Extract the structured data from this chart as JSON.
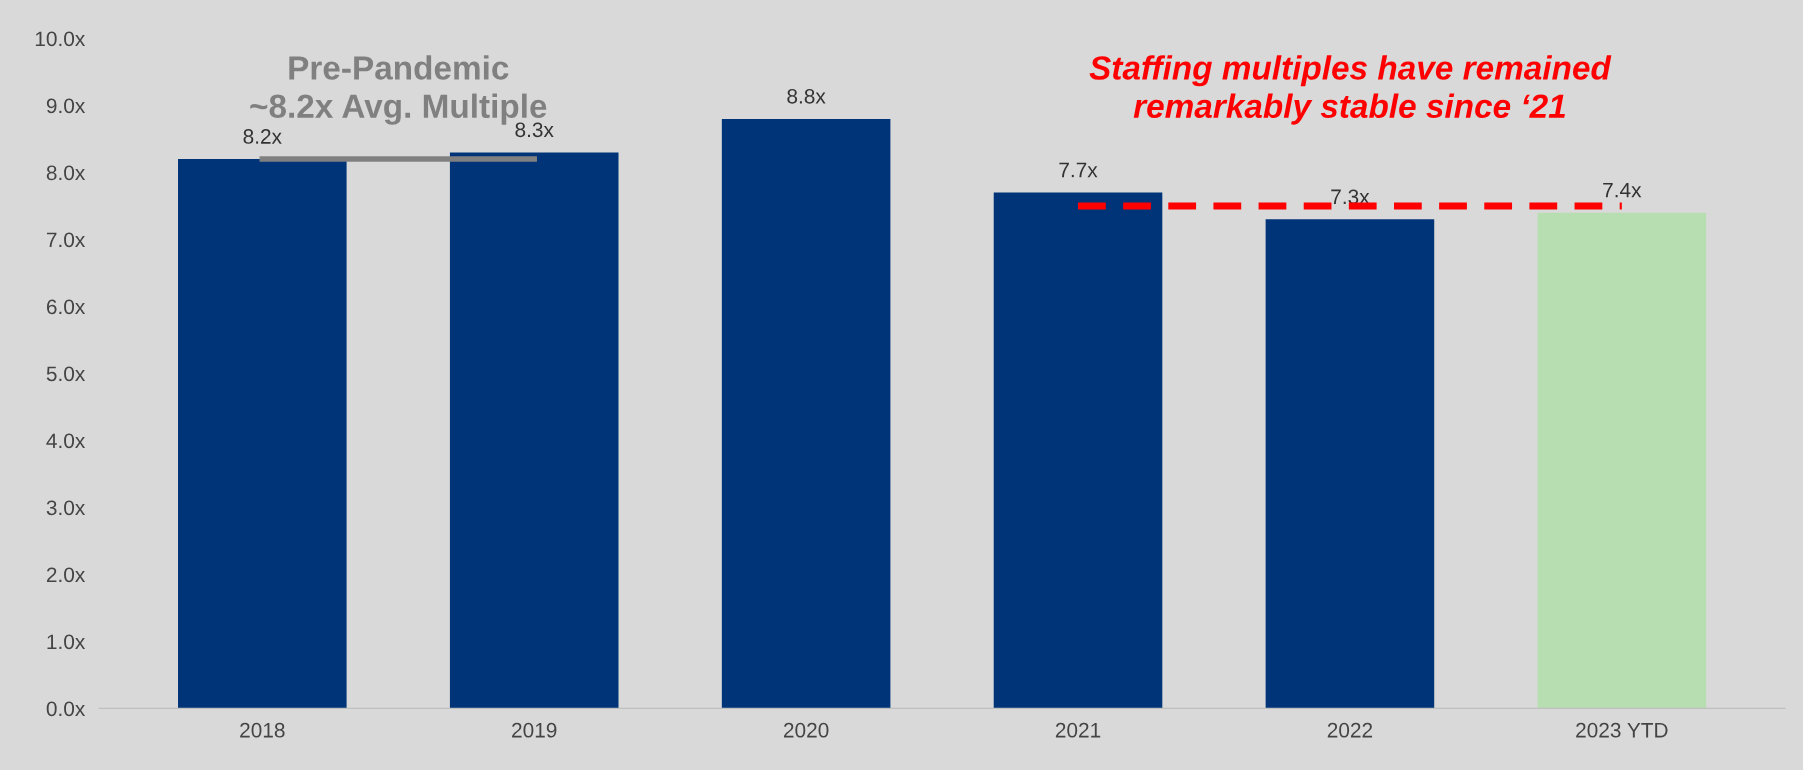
{
  "chart_data": {
    "type": "bar",
    "categories": [
      "2018",
      "2019",
      "2020",
      "2021",
      "2022",
      "2023 YTD"
    ],
    "series": [
      {
        "colors": [
          "#003478",
          "#003478",
          "#003478",
          "#003478",
          "#003478",
          "#b6deb1"
        ],
        "values": [
          8.2,
          8.3,
          8.8,
          7.7,
          7.3,
          7.4
        ],
        "value_labels": [
          "8.2x",
          "8.3x",
          "8.8x",
          "7.7x",
          "7.3x",
          "7.4x"
        ]
      },
      {
        "type": "line",
        "color": "#808080",
        "line_style": "solid",
        "values": [
          8.2,
          8.2,
          null,
          null,
          null,
          null
        ]
      },
      {
        "type": "line",
        "color": "#ff0000",
        "line_style": "dashed",
        "values": [
          null,
          null,
          null,
          7.5,
          7.5,
          7.5
        ]
      }
    ],
    "ylim": [
      0,
      10
    ],
    "yticks": [
      {
        "value": 0,
        "label": "0.0x"
      },
      {
        "value": 1,
        "label": "1.0x"
      },
      {
        "value": 2,
        "label": "2.0x"
      },
      {
        "value": 3,
        "label": "3.0x"
      },
      {
        "value": 4,
        "label": "4.0x"
      },
      {
        "value": 5,
        "label": "5.0x"
      },
      {
        "value": 6,
        "label": "6.0x"
      },
      {
        "value": 7,
        "label": "7.0x"
      },
      {
        "value": 8,
        "label": "8.0x"
      },
      {
        "value": 9,
        "label": "9.0x"
      },
      {
        "value": 10,
        "label": "10.0x"
      }
    ],
    "annotations": [
      "Pre-Pandemic\n~8.2x Avg. Multiple",
      "Staffing multiples have remained\nremarkably stable since ‘21"
    ],
    "grid": false,
    "legend": false
  }
}
